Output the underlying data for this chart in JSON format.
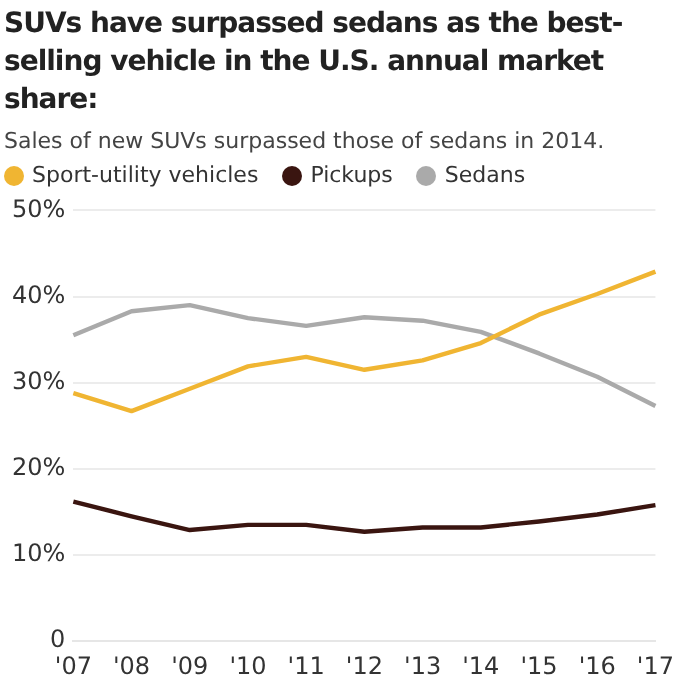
{
  "chart_data": {
    "type": "line",
    "title": "SUVs have surpassed sedans as the best-selling vehicle in the U.S. annual market share:",
    "subtitle": "Sales of new SUVs surpassed those of sedans in 2014.",
    "categories": [
      "'07",
      "'08",
      "'09",
      "'10",
      "'11",
      "'12",
      "'13",
      "'14",
      "'15",
      "'16",
      "'17"
    ],
    "series": [
      {
        "name": "Sport-utility vehicles",
        "color": "#f0b532",
        "values": [
          28.8,
          26.7,
          29.3,
          31.9,
          33.0,
          31.5,
          32.6,
          34.6,
          37.9,
          40.3,
          42.9
        ]
      },
      {
        "name": "Pickups",
        "color": "#3a1510",
        "values": [
          16.2,
          14.5,
          12.9,
          13.5,
          13.5,
          12.7,
          13.2,
          13.2,
          13.9,
          14.7,
          15.8
        ]
      },
      {
        "name": "Sedans",
        "color": "#aaaaaa",
        "values": [
          35.5,
          38.3,
          39.0,
          37.5,
          36.6,
          37.6,
          37.2,
          35.9,
          33.4,
          30.7,
          27.3
        ]
      }
    ],
    "ylim": [
      0,
      50
    ],
    "yticks": [
      {
        "value": 0,
        "label": "0"
      },
      {
        "value": 10,
        "label": "10%"
      },
      {
        "value": 20,
        "label": "20%"
      },
      {
        "value": 30,
        "label": "30%"
      },
      {
        "value": 40,
        "label": "40%"
      },
      {
        "value": 50,
        "label": "50%"
      }
    ],
    "grid": "y",
    "legend": "top left",
    "marker": "none",
    "line_style": "solid"
  }
}
